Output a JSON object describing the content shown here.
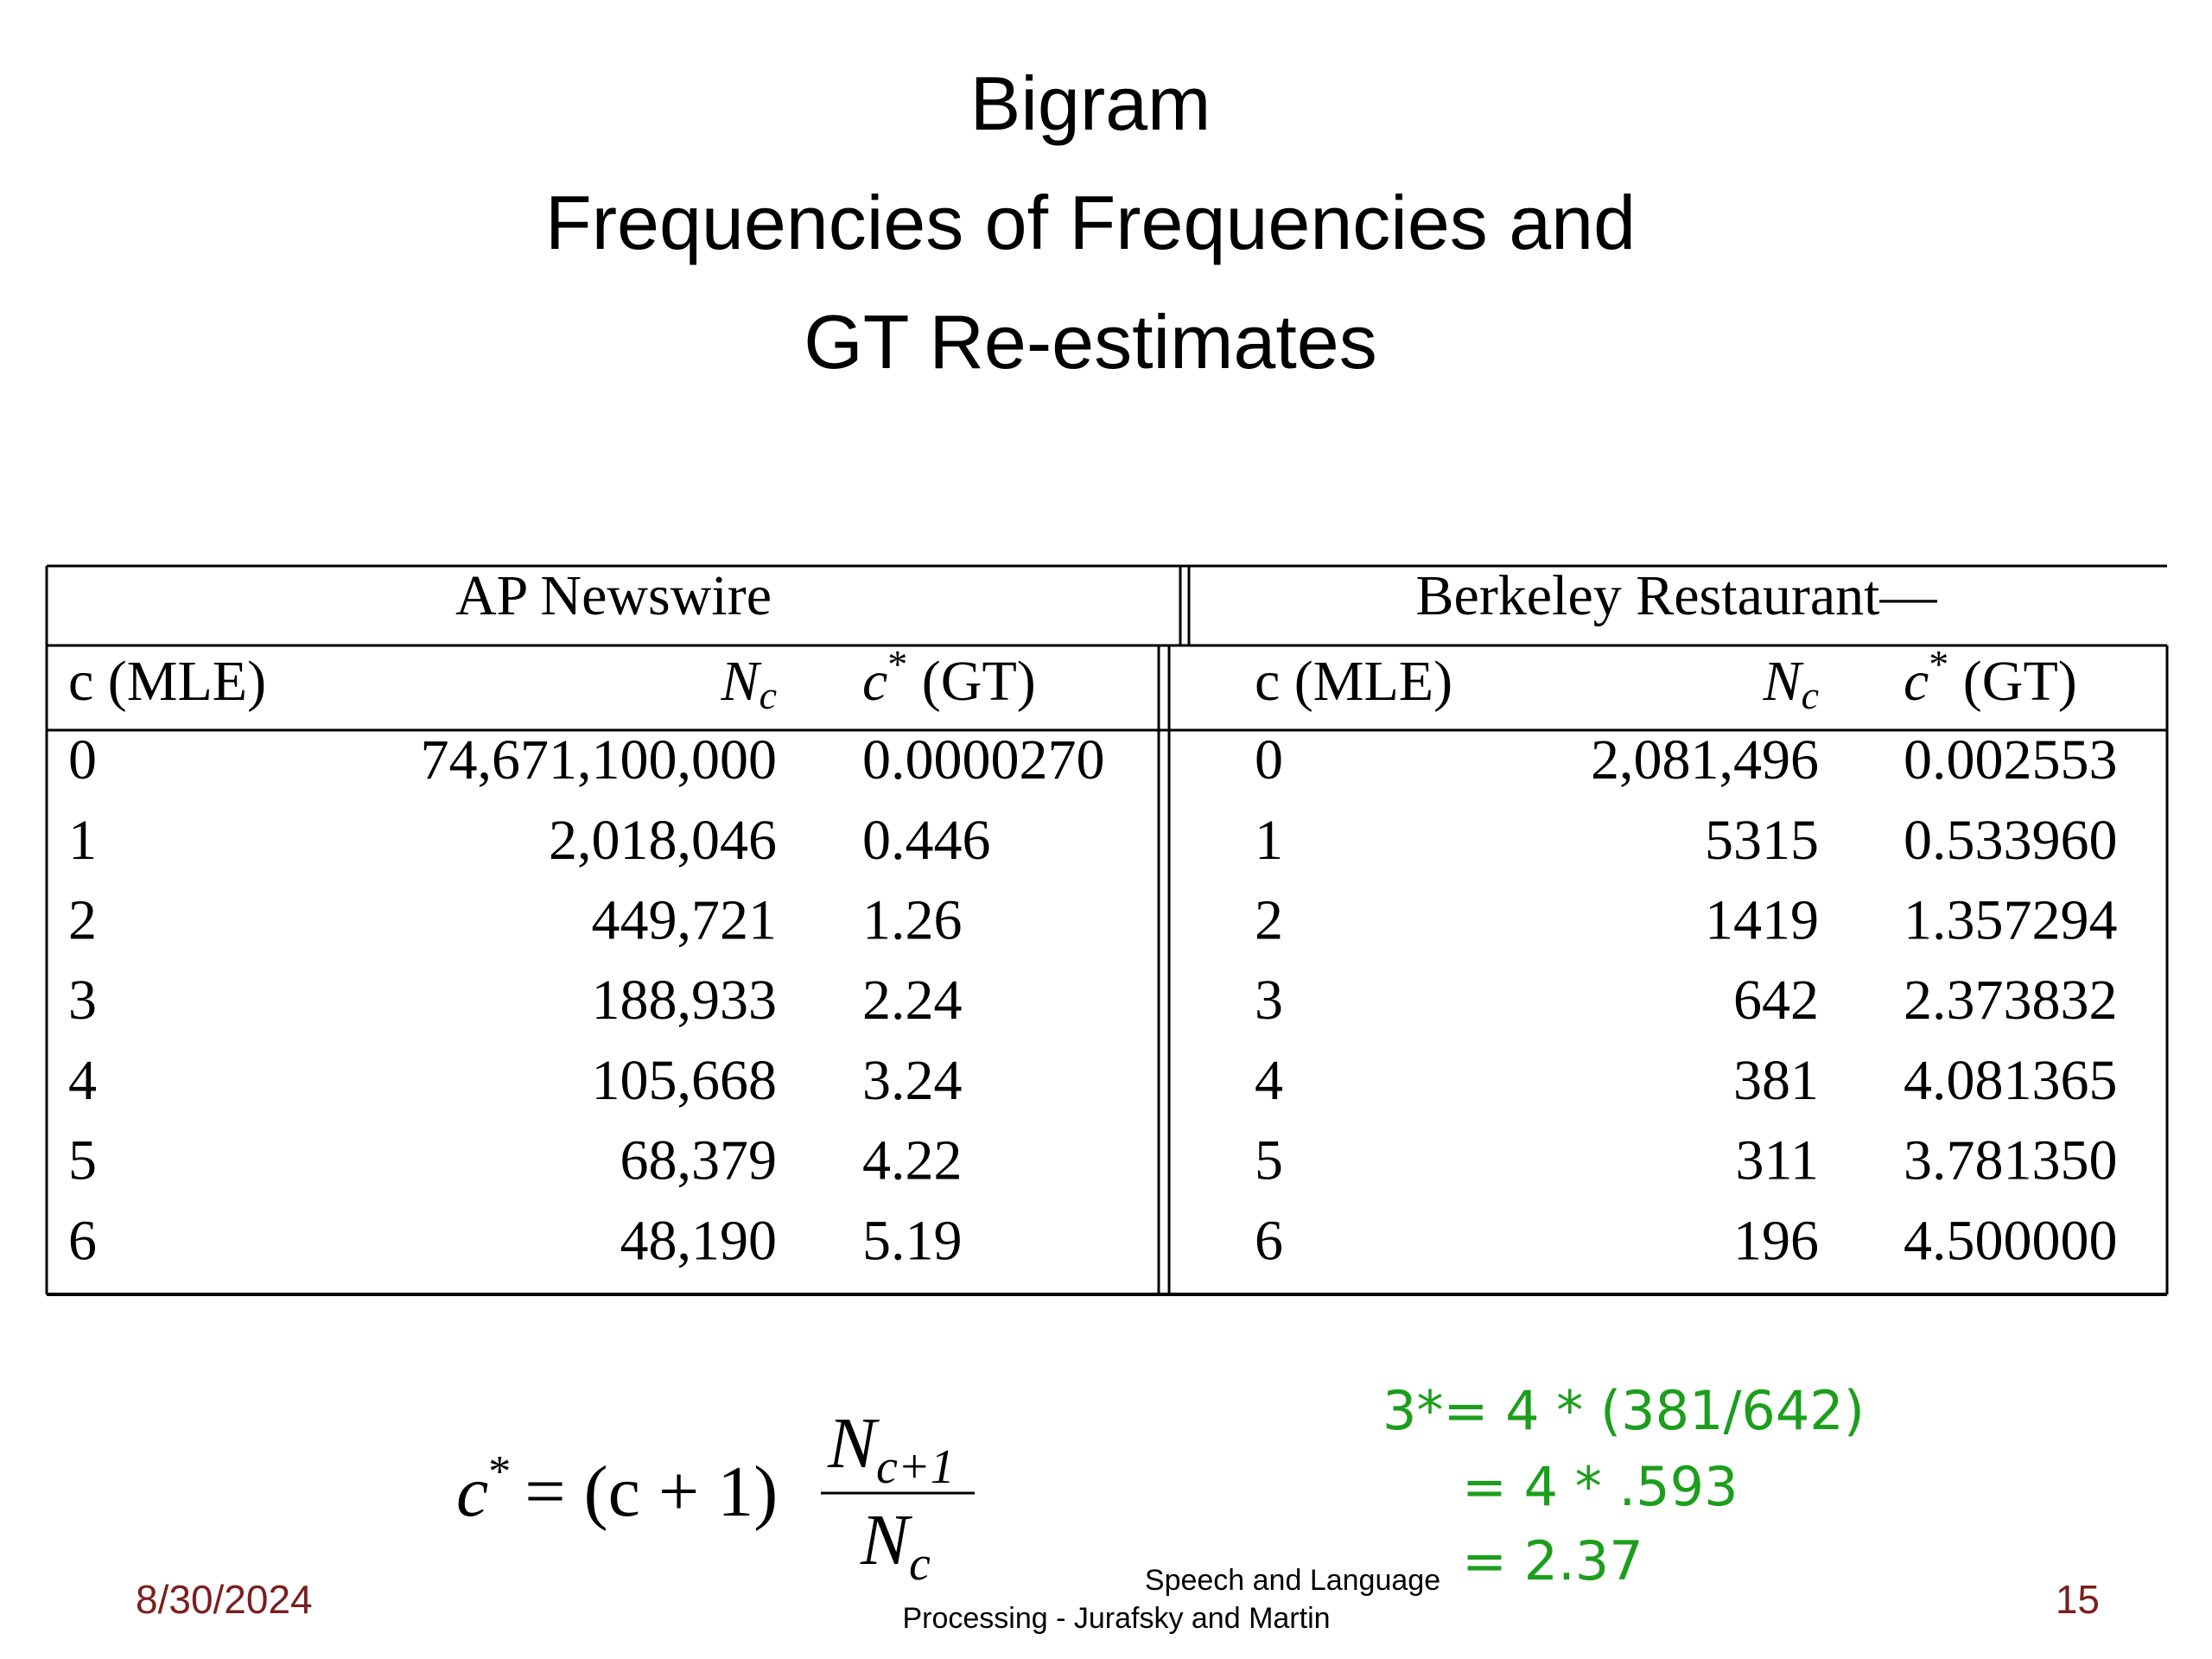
{
  "header": {
    "title": [
      "Bigram",
      "Frequencies of Frequencies and",
      "GT Re-estimates"
    ]
  },
  "table": {
    "groups": [
      "AP Newswire",
      "Berkeley Restaurant—"
    ],
    "headers": [
      [
        {
          "text": "c (MLE)"
        },
        {
          "text": "N",
          "sub": "c"
        },
        {
          "text": "c",
          "sup": "*",
          "after": " (GT)"
        }
      ],
      [
        {
          "text": "c (MLE)"
        },
        {
          "text": "N",
          "sub": "c"
        },
        {
          "text": "c",
          "sup": "*",
          "after": " (GT)"
        }
      ]
    ],
    "rows": [
      [
        "0",
        "74,671,100,000",
        "0.0000270",
        "0",
        "2,081,496",
        "0.002553"
      ],
      [
        "1",
        "2,018,046",
        "0.446",
        "1",
        "5315",
        "0.533960"
      ],
      [
        "2",
        "449,721",
        "1.26",
        "2",
        "1419",
        "1.357294"
      ],
      [
        "3",
        "188,933",
        "2.24",
        "3",
        "642",
        "2.373832"
      ],
      [
        "4",
        "105,668",
        "3.24",
        "4",
        "381",
        "4.081365"
      ],
      [
        "5",
        "68,379",
        "4.22",
        "5",
        "311",
        "3.781350"
      ],
      [
        "6",
        "48,190",
        "5.19",
        "6",
        "196",
        "4.500000"
      ]
    ]
  },
  "formula": {
    "lhs": "c",
    "lhs_sup": "*",
    "rhs": "= (c + 1)",
    "numerator": "N",
    "numerator_sub": "c+1",
    "denominator": "N",
    "denominator_sub": "c"
  },
  "note": [
    "3*= 4 * (381/642)",
    "= 4 * .593",
    "= 2.37"
  ],
  "footer": {
    "date": "8/30/2024",
    "source": [
      "Speech and Language",
      "Processing - Jurafsky and Martin"
    ],
    "page": "15"
  }
}
